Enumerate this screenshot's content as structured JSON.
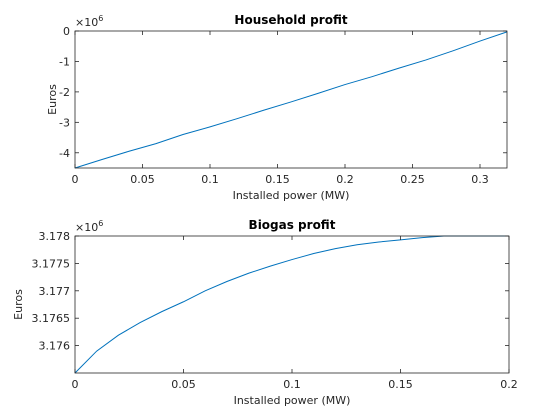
{
  "chart_data": [
    {
      "type": "line",
      "title": "Household profit",
      "x_label": "Installed power (MW)",
      "y_label": "Euros",
      "y_multiplier_base": "×10",
      "y_multiplier_exp": "6",
      "color": "#0072bd",
      "x": [
        0,
        0.02,
        0.04,
        0.06,
        0.08,
        0.1,
        0.12,
        0.14,
        0.16,
        0.18,
        0.2,
        0.22,
        0.24,
        0.26,
        0.28,
        0.3,
        0.32
      ],
      "values": [
        -4.5,
        -4.22,
        -3.95,
        -3.7,
        -3.4,
        -3.15,
        -2.88,
        -2.6,
        -2.33,
        -2.05,
        -1.76,
        -1.5,
        -1.22,
        -0.95,
        -0.65,
        -0.33,
        -0.03
      ],
      "xlim": [
        0,
        0.32
      ],
      "xticks": [
        0,
        0.05,
        0.1,
        0.15,
        0.2,
        0.25,
        0.3
      ],
      "ylim": [
        -4.5,
        0
      ],
      "yticks": [
        -4,
        -3,
        -2,
        -1,
        0
      ]
    },
    {
      "type": "line",
      "title": "Biogas profit",
      "x_label": "Installed power (MW)",
      "y_label": "Euros",
      "y_multiplier_base": "×10",
      "y_multiplier_exp": "6",
      "color": "#0072bd",
      "x": [
        0,
        0.01,
        0.02,
        0.03,
        0.04,
        0.05,
        0.06,
        0.07,
        0.08,
        0.09,
        0.1,
        0.11,
        0.12,
        0.13,
        0.14,
        0.15,
        0.16,
        0.17,
        0.18,
        0.19,
        0.2
      ],
      "values": [
        3.1755,
        3.1759,
        3.17619,
        3.17642,
        3.17662,
        3.1768,
        3.177,
        3.17717,
        3.17732,
        3.17745,
        3.17757,
        3.17768,
        3.17777,
        3.17784,
        3.17789,
        3.17793,
        3.17797,
        3.178,
        3.178,
        3.178,
        3.178
      ],
      "xlim": [
        0,
        0.2
      ],
      "xticks": [
        0,
        0.05,
        0.1,
        0.15,
        0.2
      ],
      "ylim": [
        3.1755,
        3.178
      ],
      "yticks": [
        3.176,
        3.1765,
        3.177,
        3.1775,
        3.178
      ]
    }
  ]
}
